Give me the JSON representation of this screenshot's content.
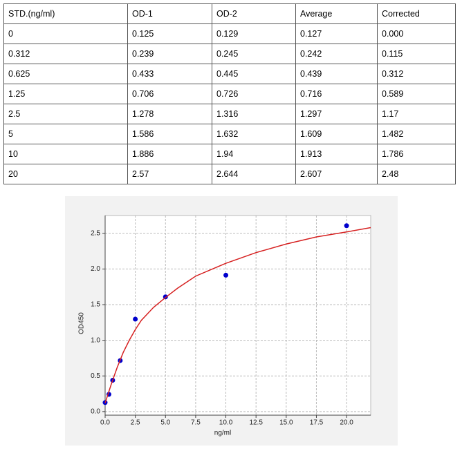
{
  "table": {
    "header": [
      "STD.(ng/ml)",
      "OD-1",
      "OD-2",
      "Average",
      "Corrected"
    ],
    "rows": [
      [
        "0",
        "0.125",
        "0.129",
        "0.127",
        "0.000"
      ],
      [
        "0.312",
        "0.239",
        "0.245",
        "0.242",
        "0.115"
      ],
      [
        "0.625",
        "0.433",
        "0.445",
        "0.439",
        "0.312"
      ],
      [
        "1.25",
        "0.706",
        "0.726",
        "0.716",
        "0.589"
      ],
      [
        "2.5",
        "1.278",
        "1.316",
        "1.297",
        "1.17"
      ],
      [
        "5",
        "1.586",
        "1.632",
        "1.609",
        "1.482"
      ],
      [
        "10",
        "1.886",
        "1.94",
        "1.913",
        "1.786"
      ],
      [
        "20",
        "2.57",
        "2.644",
        "2.607",
        "2.48"
      ]
    ]
  },
  "chart_data": {
    "type": "scatter",
    "x_label": "ng/ml",
    "y_label": "OD450",
    "xlim": [
      0,
      22
    ],
    "ylim": [
      -0.05,
      2.75
    ],
    "xticks": [
      {
        "value": 0,
        "label": "0.0"
      },
      2.5,
      {
        "value": 5,
        "label": "5.0"
      },
      7.5,
      {
        "value": 10,
        "label": "10.0"
      },
      12.5,
      {
        "value": 15,
        "label": "15.0"
      },
      17.5,
      {
        "value": 20,
        "label": "20.0"
      }
    ],
    "yticks": [
      {
        "value": 0,
        "label": "0.0"
      },
      0.5,
      {
        "value": 1,
        "label": "1.0"
      },
      1.5,
      {
        "value": 2,
        "label": "2.0"
      },
      2.5
    ],
    "grid": true,
    "series": [
      {
        "type": "scatter",
        "color": "#0000cc",
        "x": [
          0,
          0.312,
          0.625,
          1.25,
          2.5,
          5,
          10,
          20
        ],
        "values": [
          0.127,
          0.242,
          0.439,
          0.716,
          1.297,
          1.609,
          1.913,
          2.607
        ]
      },
      {
        "type": "line",
        "color": "#d62020",
        "x": [
          0,
          0.5,
          1,
          1.5,
          2,
          2.5,
          3,
          4,
          5,
          6,
          7.5,
          10,
          12.5,
          15,
          17.5,
          20,
          22
        ],
        "values": [
          0.12,
          0.38,
          0.62,
          0.83,
          1.0,
          1.15,
          1.28,
          1.46,
          1.6,
          1.73,
          1.9,
          2.08,
          2.23,
          2.35,
          2.45,
          2.52,
          2.58
        ]
      }
    ]
  }
}
